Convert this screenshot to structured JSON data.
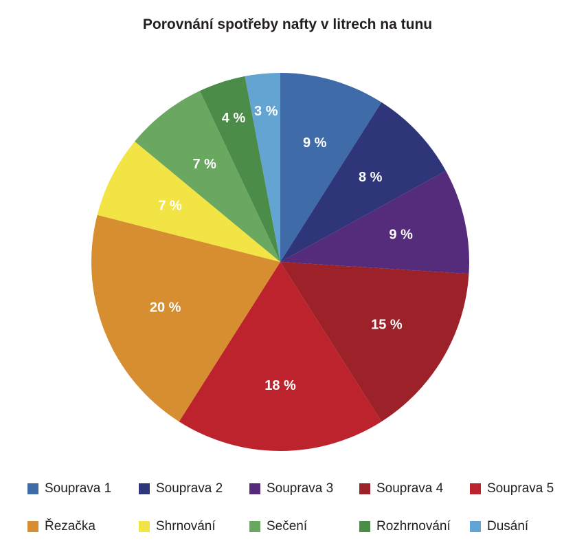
{
  "title": "Porovnání spotřeby nafty v litrech na tunu",
  "chart_data": {
    "type": "pie",
    "title": "Porovnání spotřeby nafty v litrech na tunu",
    "legend_position": "bottom",
    "slices": [
      {
        "name": "Souprava 1",
        "value": 9,
        "label": "9 %",
        "color": "#3f6ba9"
      },
      {
        "name": "Souprava 2",
        "value": 8,
        "label": "8 %",
        "color": "#2e3579"
      },
      {
        "name": "Souprava 3",
        "value": 9,
        "label": "9 %",
        "color": "#552b7b"
      },
      {
        "name": "Souprava 4",
        "value": 15,
        "label": "15 %",
        "color": "#9d2129"
      },
      {
        "name": "Souprava 5",
        "value": 18,
        "label": "18 %",
        "color": "#bd232c"
      },
      {
        "name": "Řezačka",
        "value": 20,
        "label": "20 %",
        "color": "#d68e31"
      },
      {
        "name": "Shrnování",
        "value": 7,
        "label": "7 %",
        "color": "#f1e444"
      },
      {
        "name": "Sečení",
        "value": 7,
        "label": "7 %",
        "color": "#6aa862"
      },
      {
        "name": "Rozhrnování",
        "value": 4,
        "label": "4 %",
        "color": "#4b8c48"
      },
      {
        "name": "Dusání",
        "value": 3,
        "label": "3 %",
        "color": "#64a4d3"
      }
    ]
  }
}
